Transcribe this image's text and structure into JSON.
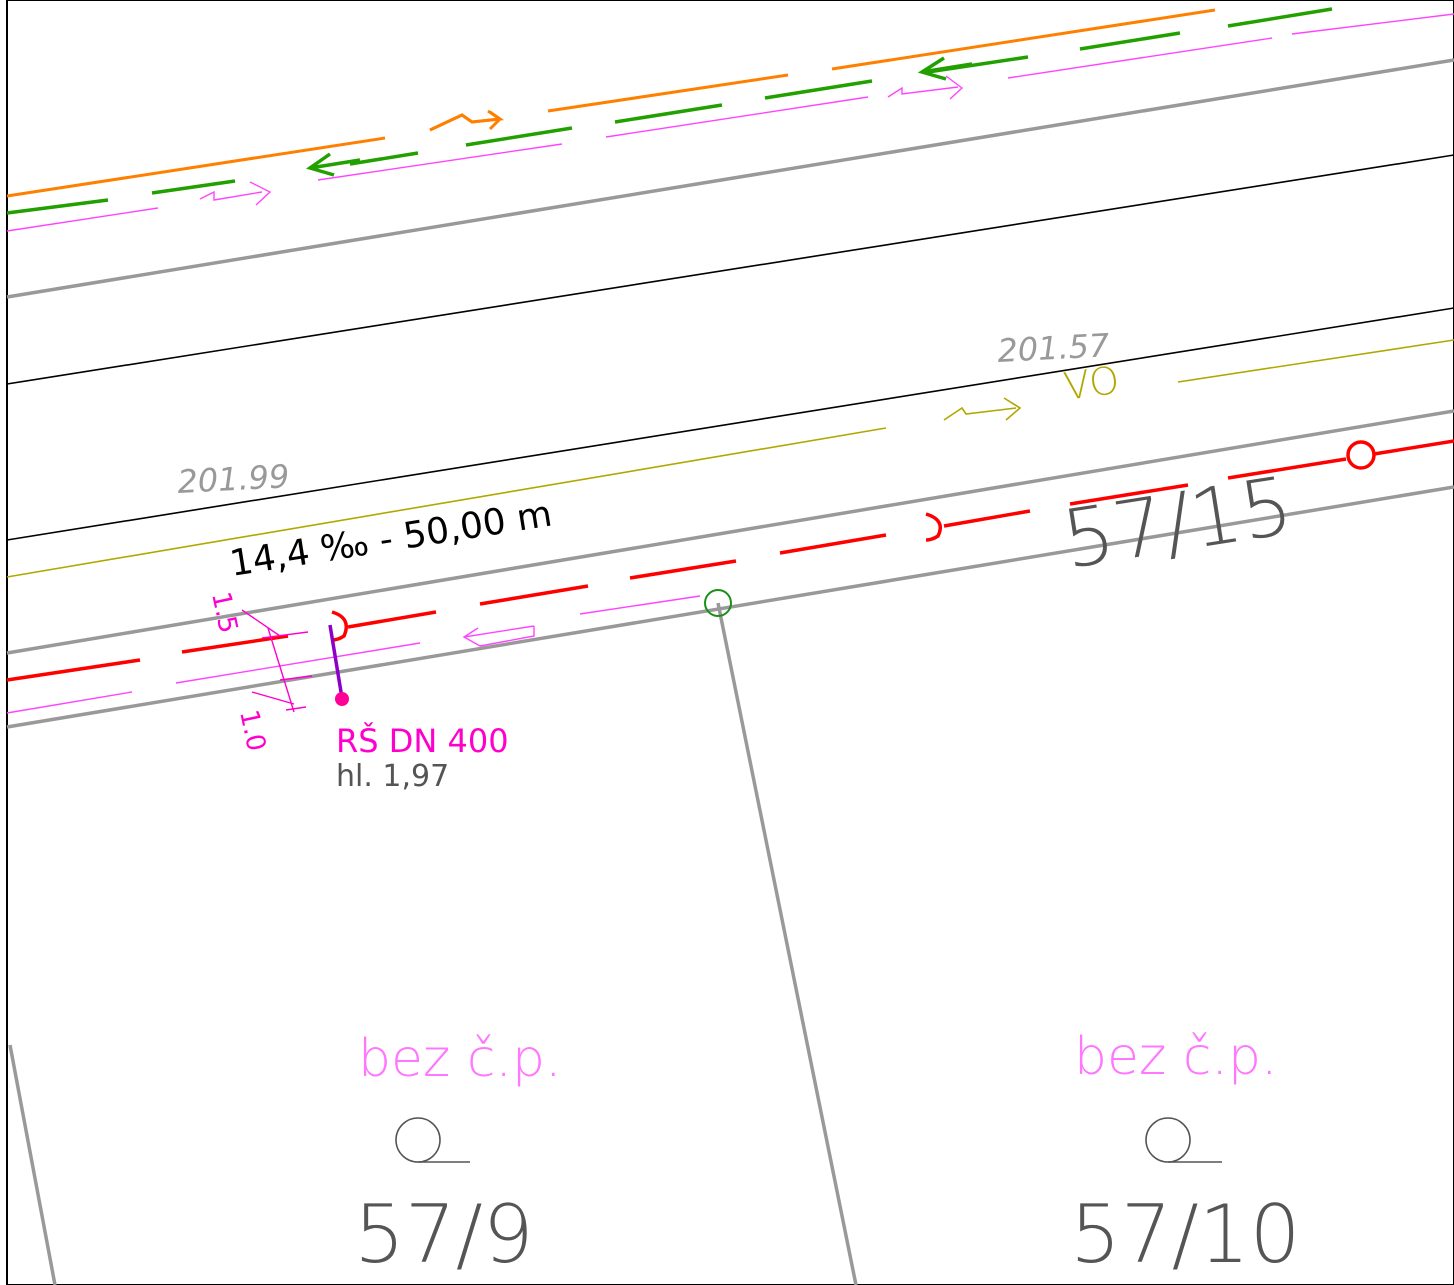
{
  "colors": {
    "frame": "#000000",
    "parcel_boundary": "#999999",
    "road_edge": "#000000",
    "gas_line": "#ff8000",
    "water_line": "#22a000",
    "telecom_line": "#ff44ff",
    "lighting_line": "#b0a800",
    "sewer_line": "#ff0000",
    "sewer_manhole": "#ff0099",
    "survey_point": "#1a8f1a",
    "elevation_text": "#999999",
    "dimension_text": "#ff00cc",
    "parcel_label": "#ff77ff",
    "parcel_number": "#555555",
    "slope_text": "#000000"
  },
  "labels": {
    "elevation_top": "201.57",
    "elevation_left": "201.99",
    "lighting_code": "VO",
    "slope": "14,4 ‰ - 50,00 m",
    "parcel_upper_right": "57/15",
    "dim_a": "1.5",
    "dim_b": "1.0",
    "manhole_name": "RŠ DN 400",
    "manhole_depth": "hl. 1,97",
    "parcel_left_status": "bez č.p.",
    "parcel_left_number": "57/9",
    "parcel_right_status": "bez č.p.",
    "parcel_right_number": "57/10"
  }
}
